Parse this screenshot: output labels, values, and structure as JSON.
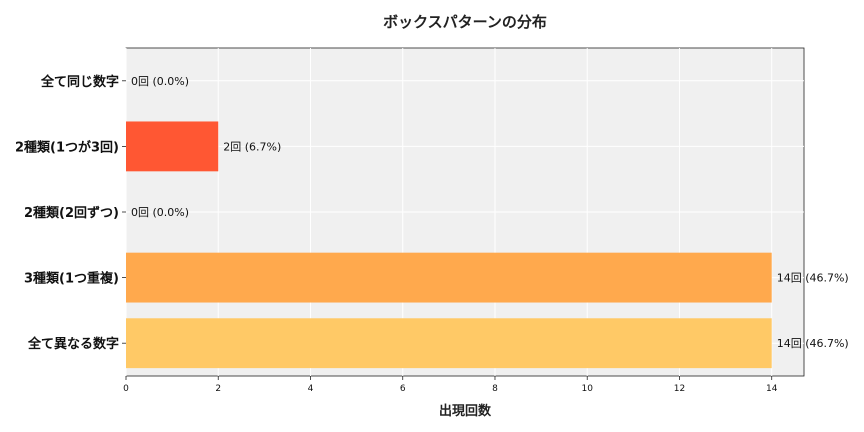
{
  "chart_data": {
    "type": "bar",
    "orientation": "horizontal",
    "title": "ボックスパターンの分布",
    "xlabel": "出現回数",
    "ylabel": "",
    "xlim": [
      0,
      14.7
    ],
    "xticks": [
      0,
      2,
      4,
      6,
      8,
      10,
      12,
      14
    ],
    "grid": true,
    "categories": [
      "全て同じ数字",
      "2種類(1つが3回)",
      "2種類(2回ずつ)",
      "3種類(1つ重複)",
      "全て異なる数字"
    ],
    "values": [
      0,
      2,
      0,
      14,
      14
    ],
    "data_labels": [
      "0回 (0.0%)",
      "2回 (6.7%)",
      "0回 (0.0%)",
      "14回 (46.7%)",
      "14回 (46.7%)"
    ],
    "colors": [
      "#ff5733",
      "#ff5733",
      "#ff8c42",
      "#ffa94d",
      "#ffc966"
    ]
  }
}
